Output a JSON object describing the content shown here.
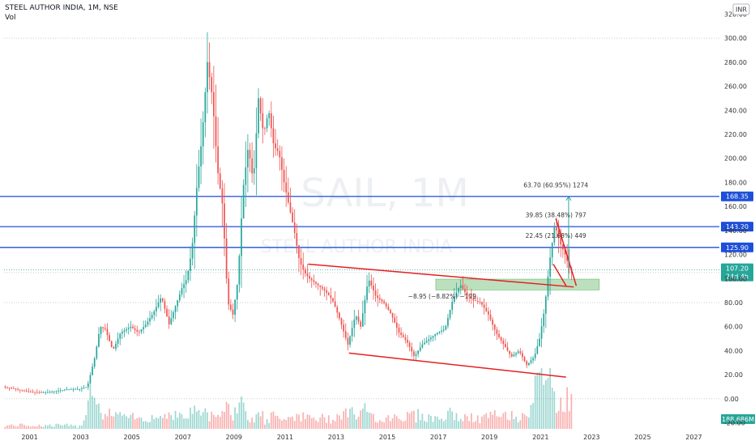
{
  "header": {
    "title": "STEEL AUTHOR INDIA, 1M, NSE",
    "vol_label": "Vol"
  },
  "currency": "INR",
  "watermark": {
    "symbol": "SAIL, 1M",
    "name": "STEEL AUTHOR INDIA"
  },
  "colors": {
    "up": "#26a69a",
    "down": "#ef5350",
    "level": "#1e4fd8",
    "trend": "#e52020",
    "zone": "#a5d6a7",
    "accent": "#2962ff"
  },
  "chart_data": {
    "type": "candlestick",
    "title": "STEEL AUTHOR INDIA, 1M, NSE",
    "ylim": [
      -25,
      325
    ],
    "y_ticks": [
      "320.00",
      "300.00",
      "280.00",
      "260.00",
      "240.00",
      "220.00",
      "200.00",
      "180.00",
      "160.00",
      "140.00",
      "120.00",
      "100.00",
      "80.00",
      "60.00",
      "40.00",
      "20.00",
      "0.00",
      "-20.00"
    ],
    "x_ticks": [
      "2001",
      "2003",
      "2005",
      "2007",
      "2009",
      "2011",
      "2013",
      "2015",
      "2017",
      "2019",
      "2021",
      "2023",
      "2025",
      "2027"
    ],
    "x_range": [
      2000.0,
      2028.0
    ],
    "price_path": [
      [
        2000.0,
        10
      ],
      [
        2000.5,
        8
      ],
      [
        2001.0,
        6
      ],
      [
        2001.5,
        5
      ],
      [
        2002.0,
        6
      ],
      [
        2002.5,
        8
      ],
      [
        2003.0,
        8
      ],
      [
        2003.3,
        10
      ],
      [
        2003.6,
        35
      ],
      [
        2003.8,
        60
      ],
      [
        2004.0,
        58
      ],
      [
        2004.3,
        40
      ],
      [
        2004.6,
        55
      ],
      [
        2005.0,
        60
      ],
      [
        2005.3,
        55
      ],
      [
        2005.6,
        62
      ],
      [
        2005.9,
        72
      ],
      [
        2006.2,
        85
      ],
      [
        2006.5,
        62
      ],
      [
        2006.8,
        80
      ],
      [
        2007.0,
        92
      ],
      [
        2007.2,
        100
      ],
      [
        2007.4,
        125
      ],
      [
        2007.6,
        180
      ],
      [
        2007.8,
        220
      ],
      [
        2008.0,
        280
      ],
      [
        2008.2,
        250
      ],
      [
        2008.4,
        190
      ],
      [
        2008.6,
        160
      ],
      [
        2008.8,
        80
      ],
      [
        2009.0,
        70
      ],
      [
        2009.2,
        100
      ],
      [
        2009.4,
        175
      ],
      [
        2009.6,
        210
      ],
      [
        2009.8,
        180
      ],
      [
        2010.0,
        250
      ],
      [
        2010.2,
        220
      ],
      [
        2010.4,
        240
      ],
      [
        2010.6,
        210
      ],
      [
        2010.8,
        205
      ],
      [
        2011.0,
        180
      ],
      [
        2011.2,
        160
      ],
      [
        2011.4,
        140
      ],
      [
        2011.6,
        115
      ],
      [
        2011.8,
        105
      ],
      [
        2012.0,
        100
      ],
      [
        2012.3,
        95
      ],
      [
        2012.6,
        90
      ],
      [
        2012.9,
        82
      ],
      [
        2013.2,
        65
      ],
      [
        2013.5,
        45
      ],
      [
        2013.8,
        70
      ],
      [
        2014.0,
        60
      ],
      [
        2014.3,
        100
      ],
      [
        2014.6,
        85
      ],
      [
        2014.9,
        80
      ],
      [
        2015.2,
        70
      ],
      [
        2015.5,
        55
      ],
      [
        2015.8,
        48
      ],
      [
        2016.1,
        35
      ],
      [
        2016.4,
        45
      ],
      [
        2016.7,
        50
      ],
      [
        2017.0,
        55
      ],
      [
        2017.3,
        58
      ],
      [
        2017.6,
        82
      ],
      [
        2017.9,
        95
      ],
      [
        2018.1,
        88
      ],
      [
        2018.4,
        82
      ],
      [
        2018.7,
        80
      ],
      [
        2019.0,
        70
      ],
      [
        2019.3,
        55
      ],
      [
        2019.6,
        45
      ],
      [
        2019.9,
        35
      ],
      [
        2020.2,
        40
      ],
      [
        2020.5,
        28
      ],
      [
        2020.8,
        35
      ],
      [
        2021.0,
        50
      ],
      [
        2021.2,
        75
      ],
      [
        2021.4,
        115
      ],
      [
        2021.6,
        145
      ],
      [
        2021.8,
        130
      ],
      [
        2022.0,
        120
      ],
      [
        2022.2,
        107
      ]
    ],
    "volume_label": "188.686M",
    "price_levels": [
      {
        "label": "168.35",
        "value": 168.35
      },
      {
        "label": "143.20",
        "value": 143.2
      },
      {
        "label": "125.90",
        "value": 125.9
      }
    ],
    "last_price": {
      "label": "107.20",
      "countdown": "24d 4h",
      "value": 107.2
    },
    "annotations": [
      {
        "text": "63.70 (60.95%) 1274",
        "x": 2021.6,
        "y": 176
      },
      {
        "text": "39.85 (38.48%) 797",
        "x": 2021.6,
        "y": 151
      },
      {
        "text": "22.45 (21.68%) 449",
        "x": 2021.6,
        "y": 134
      },
      {
        "text": "−8.95 (−8.82%) −179",
        "x": 2017.15,
        "y": 83.5
      }
    ],
    "trendlines": [
      {
        "x1": 2011.9,
        "y1": 112,
        "x2": 2022.3,
        "y2": 93
      },
      {
        "x1": 2013.5,
        "y1": 38,
        "x2": 2022.0,
        "y2": 18
      },
      {
        "x1": 2021.5,
        "y1": 112,
        "x2": 2022.0,
        "y2": 94
      },
      {
        "x1": 2021.6,
        "y1": 150,
        "x2": 2022.4,
        "y2": 94
      }
    ],
    "zone": {
      "x1": 2016.9,
      "x2": 2023.3,
      "y1": 90.5,
      "y2": 99.5
    },
    "measure_arrow": {
      "x": 2022.1,
      "y1": 100,
      "y2": 168.35
    },
    "grid": false
  }
}
